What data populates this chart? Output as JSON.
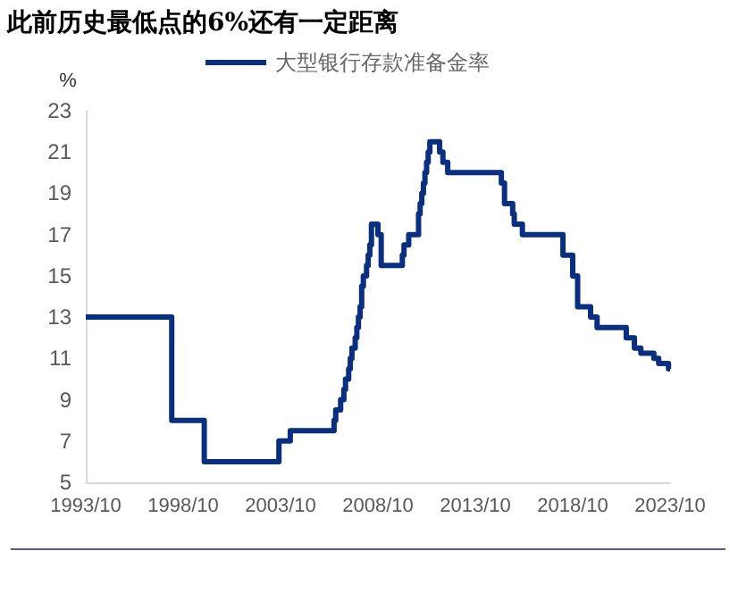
{
  "chart_data": {
    "type": "step",
    "title": "此前历史最低点的6%还有一定距离",
    "ylabel": "%",
    "x": [
      "1993-10",
      "1998-03",
      "1999-11",
      "2003-09",
      "2004-04",
      "2006-07",
      "2006-08",
      "2006-11",
      "2007-01",
      "2007-02",
      "2007-04",
      "2007-05",
      "2007-06",
      "2007-08",
      "2007-09",
      "2007-10",
      "2007-11",
      "2007-12",
      "2008-01",
      "2008-03",
      "2008-04",
      "2008-05",
      "2008-06",
      "2008-10",
      "2008-12",
      "2010-01",
      "2010-02",
      "2010-05",
      "2010-11",
      "2010-12",
      "2011-01",
      "2011-02",
      "2011-03",
      "2011-04",
      "2011-05",
      "2011-06",
      "2011-12",
      "2012-02",
      "2012-05",
      "2015-02",
      "2015-04",
      "2015-09",
      "2015-10",
      "2016-03",
      "2018-04",
      "2018-10",
      "2019-01",
      "2019-09",
      "2020-01",
      "2021-07",
      "2021-12",
      "2022-04",
      "2022-12",
      "2023-03",
      "2023-09",
      "2023-10"
    ],
    "series": [
      {
        "name": "大型银行存款准备金率",
        "color": "#0a2f7f",
        "values": [
          13,
          8,
          6,
          7,
          7.5,
          8,
          8.5,
          9,
          9.5,
          10,
          10.5,
          11,
          11.5,
          12,
          12.5,
          13,
          13.5,
          14.5,
          15,
          15.5,
          16,
          16.5,
          17.5,
          17,
          15.5,
          16,
          16.5,
          17,
          18,
          18.5,
          19,
          19.5,
          20,
          20.5,
          21,
          21.5,
          21,
          20.5,
          20,
          19.5,
          18.5,
          18,
          17.5,
          17,
          16,
          15,
          13.5,
          13,
          12.5,
          12,
          11.5,
          11.25,
          11,
          10.75,
          10.5,
          10.5
        ]
      }
    ],
    "xlim": [
      "1993-10",
      "2023-10"
    ],
    "xticks": [
      {
        "value": "1993-10",
        "label": "1993/10"
      },
      {
        "value": "1998-10",
        "label": "1998/10"
      },
      {
        "value": "2003-10",
        "label": "2003/10"
      },
      {
        "value": "2008-10",
        "label": "2008/10"
      },
      {
        "value": "2013-10",
        "label": "2013/10"
      },
      {
        "value": "2018-10",
        "label": "2018/10"
      },
      {
        "value": "2023-10",
        "label": "2023/10"
      }
    ],
    "ylim": [
      5,
      23
    ],
    "yticks": [
      5,
      7,
      9,
      11,
      13,
      15,
      17,
      19,
      21,
      23
    ],
    "grid": false,
    "legend": "top",
    "marker": "none",
    "line_style": "solid"
  }
}
